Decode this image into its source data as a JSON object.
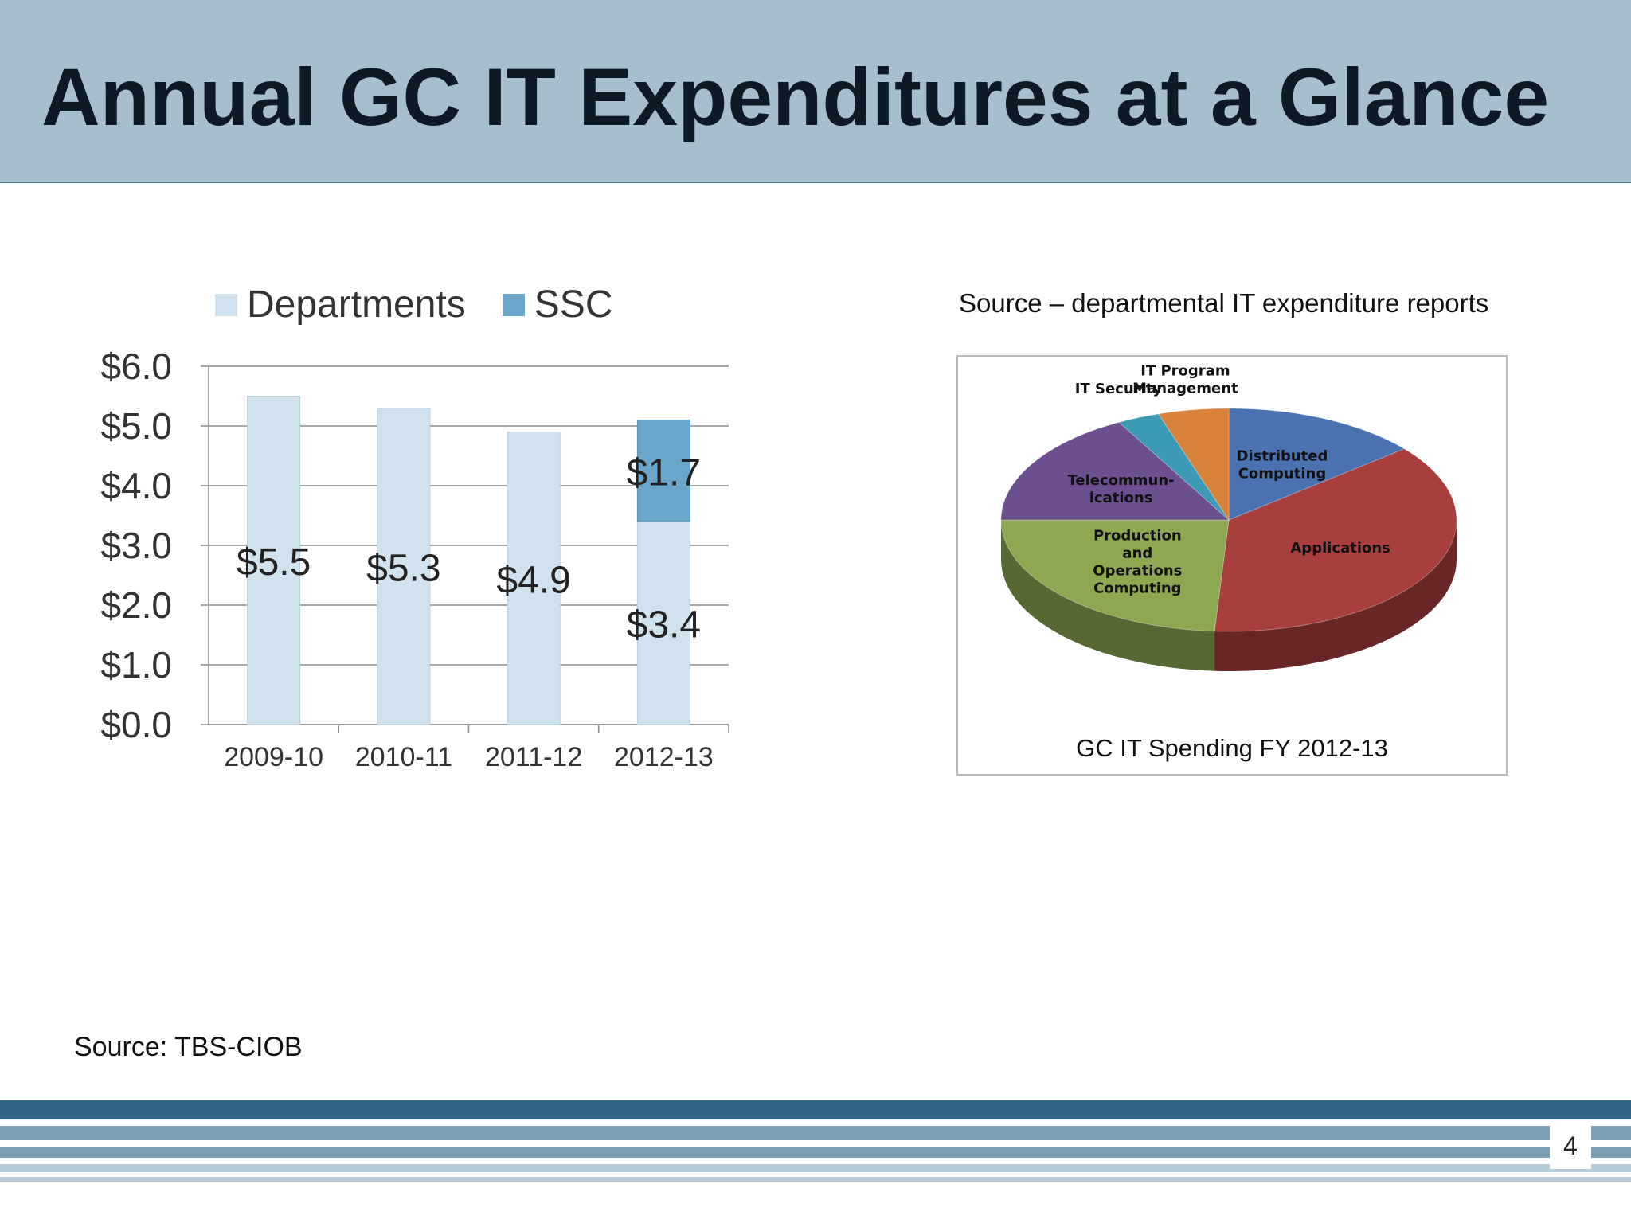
{
  "title": "Annual GC IT Expenditures at a Glance",
  "colors": {
    "title_bar": "#a7bfcd",
    "departments": "#cfe2ee",
    "ssc": "#6aa6c9",
    "stripe_dark": "#2f6484",
    "stripe_mid": "#7e9eb6",
    "stripe_light": "#b6cad8"
  },
  "chart_data": [
    {
      "type": "bar",
      "stacked": true,
      "categories": [
        "2009-10",
        "2010-11",
        "2011-12",
        "2012-13"
      ],
      "series": [
        {
          "name": "Departments",
          "color": "#cfe2ee",
          "values": [
            5.5,
            5.3,
            4.9,
            3.4
          ]
        },
        {
          "name": "SSC",
          "color": "#6aa6c9",
          "values": [
            0,
            0,
            0,
            1.7
          ]
        }
      ],
      "data_labels": [
        "$5.5",
        "$5.3",
        "$4.9",
        "$3.4",
        "$1.7"
      ],
      "yticks": [
        "$6.0",
        "$5.0",
        "$4.0",
        "$3.0",
        "$2.0",
        "$1.0",
        "$0.0"
      ],
      "ylim": [
        0,
        6
      ],
      "grid": true,
      "legend_position": "top"
    },
    {
      "type": "pie",
      "title": "GC IT Spending FY 2012-13",
      "source": "Source – departmental IT expenditure reports",
      "slices": [
        {
          "label": "Distributed Computing",
          "label_lines": [
            "Distributed",
            "Computing"
          ],
          "value": 14,
          "color": "#4a71b0"
        },
        {
          "label": "Applications",
          "label_lines": [
            "Applications"
          ],
          "value": 37,
          "color": "#a83e3e"
        },
        {
          "label": "Production and Operations Computing",
          "label_lines": [
            "Production",
            "and",
            "Operations",
            "Computing"
          ],
          "value": 24,
          "color": "#8ea852"
        },
        {
          "label": "Telecommunications",
          "label_lines": [
            "Telecommun-",
            "ications"
          ],
          "value": 17,
          "color": "#6b4f8e"
        },
        {
          "label": "IT Security",
          "label_lines": [
            "IT Security"
          ],
          "value": 3,
          "color": "#3c9ab4"
        },
        {
          "label": "IT Program Management",
          "label_lines": [
            "IT Program",
            "Management"
          ],
          "value": 5,
          "color": "#d9823b"
        }
      ]
    }
  ],
  "footer": {
    "source": "Source: TBS-CIOB",
    "page_number": "4"
  }
}
